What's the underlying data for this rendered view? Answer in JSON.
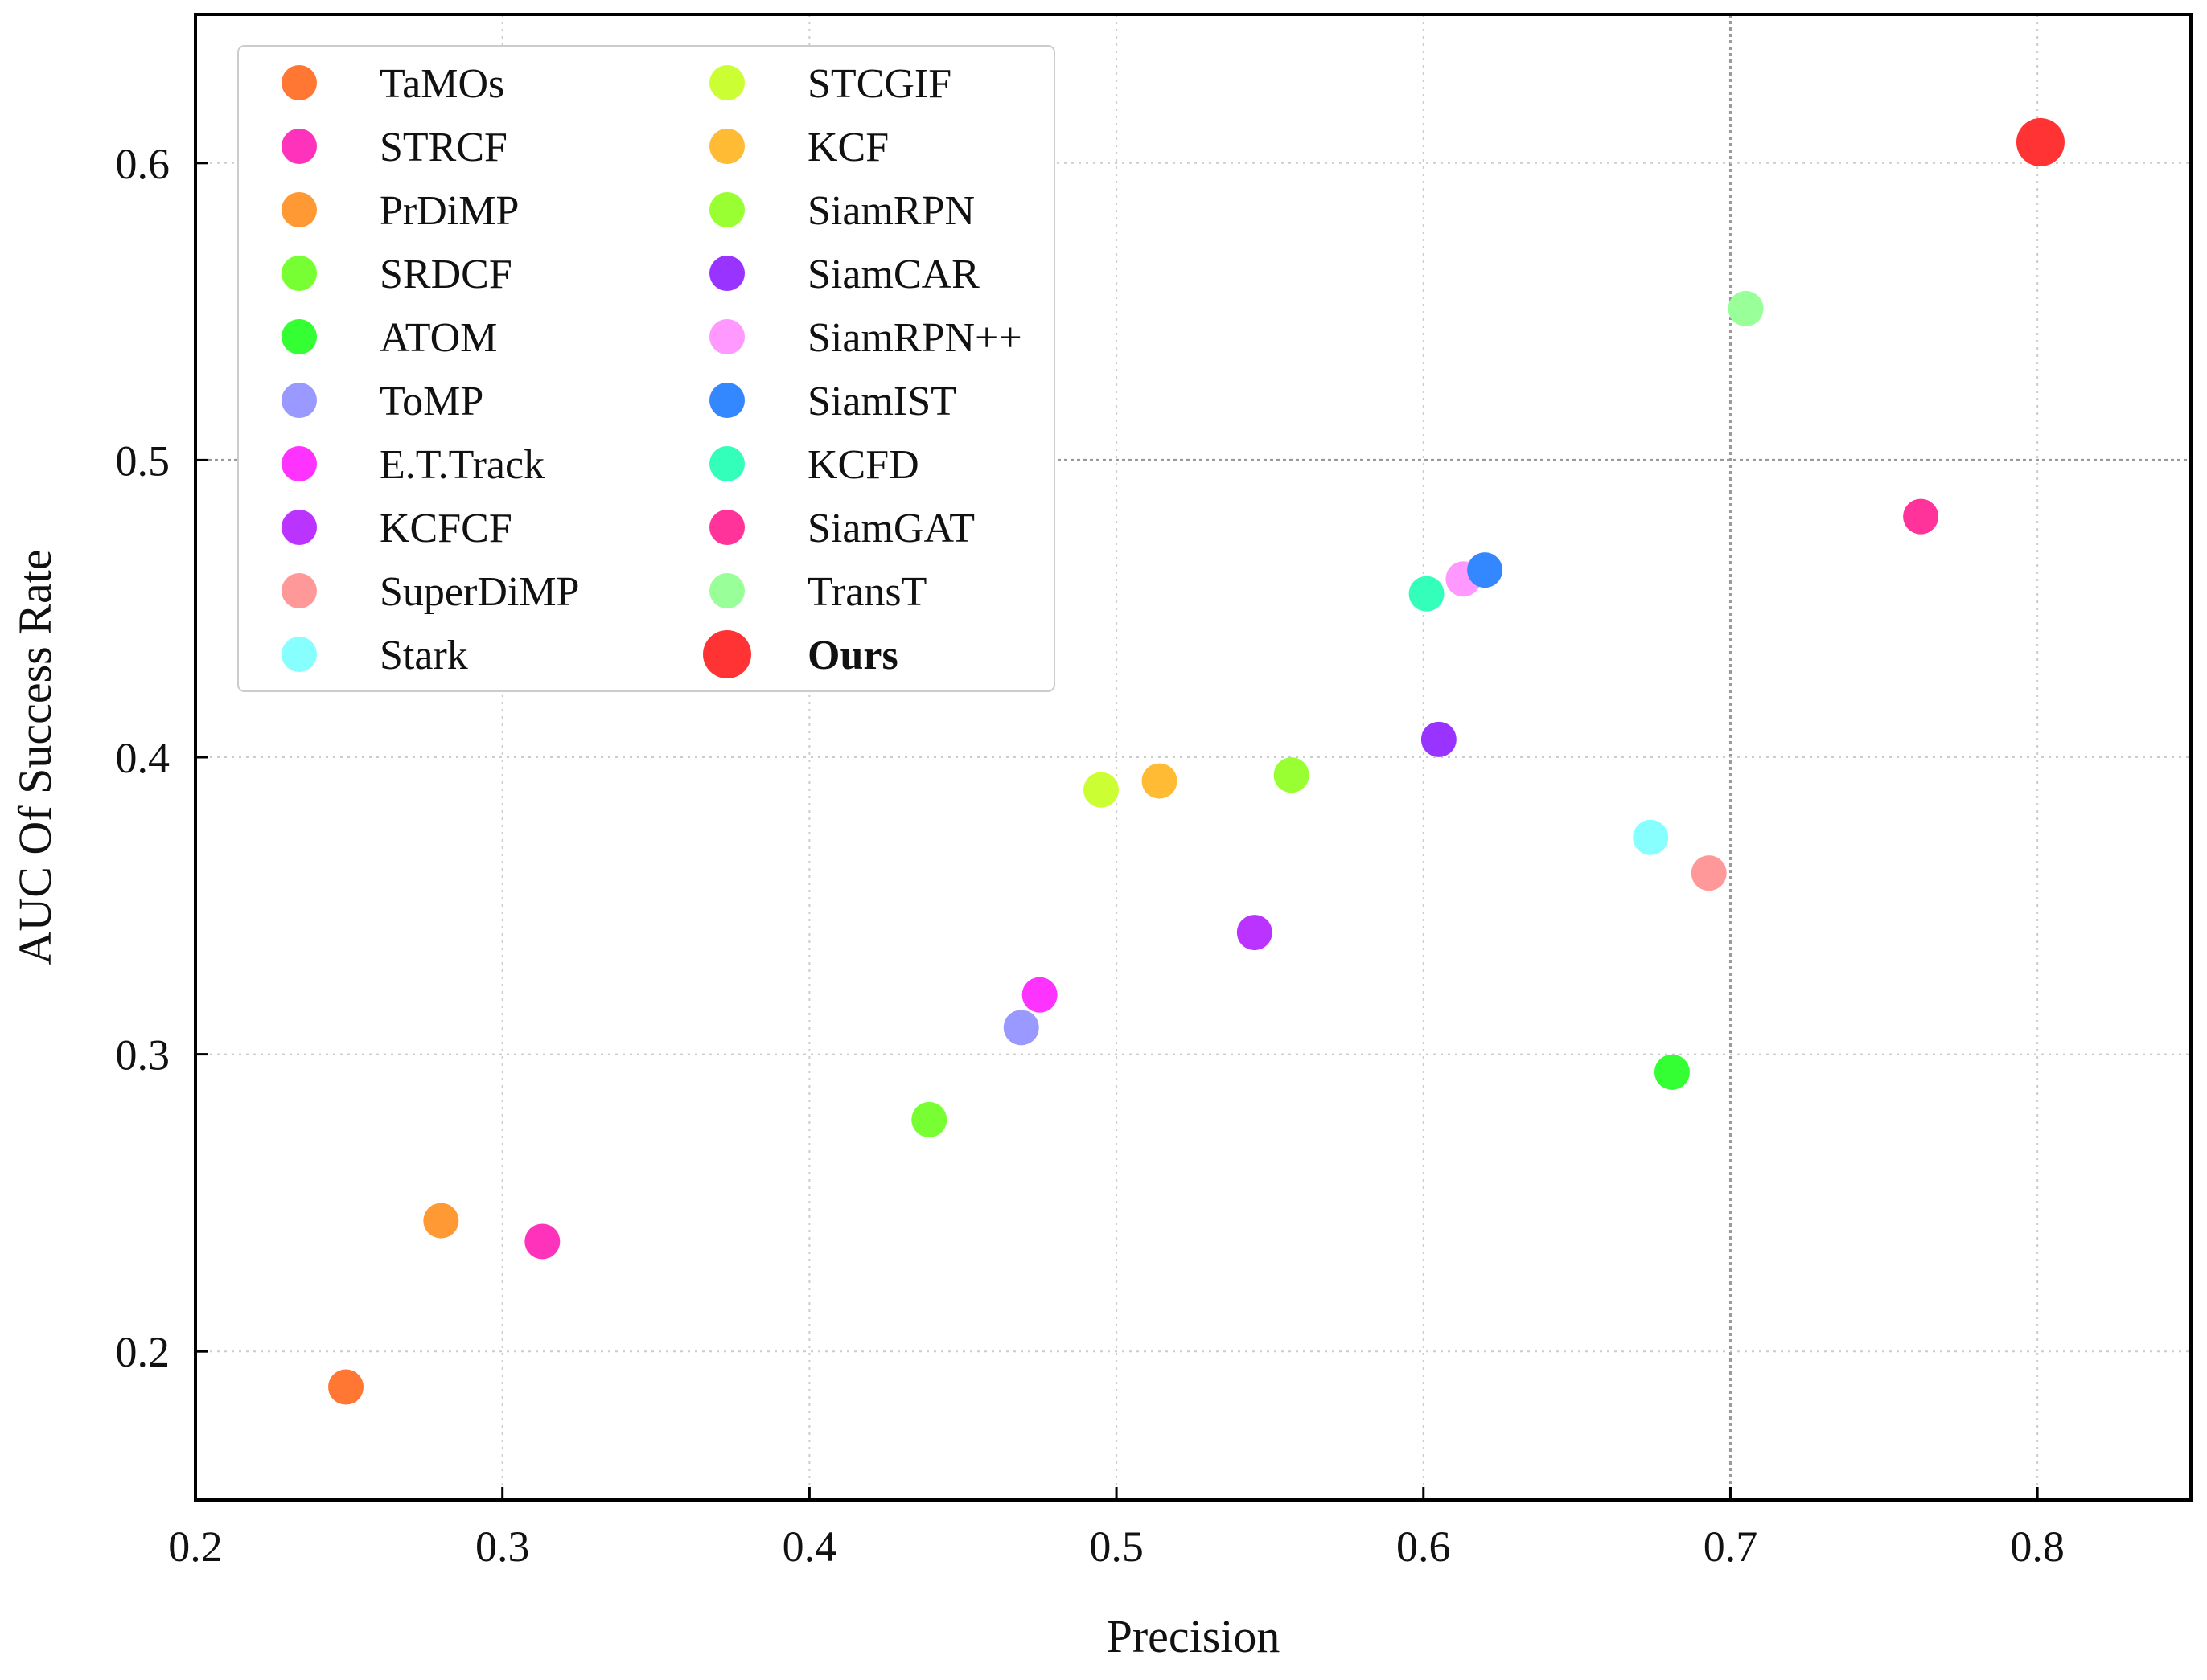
{
  "chart_data": {
    "type": "scatter",
    "xlabel": "Precision",
    "ylabel": "AUC Of Success Rate",
    "xlim": [
      0.2,
      0.85
    ],
    "ylim": [
      0.15,
      0.65
    ],
    "xticks": [
      0.2,
      0.3,
      0.4,
      0.5,
      0.6,
      0.7,
      0.8
    ],
    "yticks": [
      0.2,
      0.3,
      0.4,
      0.5,
      0.6
    ],
    "xtick_labels": [
      "0.2",
      "0.3",
      "0.4",
      "0.5",
      "0.6",
      "0.7",
      "0.8"
    ],
    "ytick_labels": [
      "0.2",
      "0.3",
      "0.4",
      "0.5",
      "0.6"
    ],
    "grid": true,
    "emphasized_gridlines": {
      "x": 0.7,
      "y": 0.5
    },
    "legend_placement": "top-left",
    "legend_columns": 2,
    "series": [
      {
        "name": "TaMOs",
        "color": "#ff7733",
        "x": 0.249,
        "y": 0.188
      },
      {
        "name": "STRCF",
        "color": "#ff33bb",
        "x": 0.313,
        "y": 0.237
      },
      {
        "name": "PrDiMP",
        "color": "#ff9933",
        "x": 0.28,
        "y": 0.244
      },
      {
        "name": "SRDCF",
        "color": "#77ff33",
        "x": 0.439,
        "y": 0.278
      },
      {
        "name": "ATOM",
        "color": "#33ff33",
        "x": 0.681,
        "y": 0.294
      },
      {
        "name": "ToMP",
        "color": "#9999ff",
        "x": 0.469,
        "y": 0.309
      },
      {
        "name": "E.T.Track",
        "color": "#ff33ff",
        "x": 0.475,
        "y": 0.32
      },
      {
        "name": "KCFCF",
        "color": "#bb33ff",
        "x": 0.545,
        "y": 0.341
      },
      {
        "name": "SuperDiMP",
        "color": "#ff9999",
        "x": 0.693,
        "y": 0.361
      },
      {
        "name": "Stark",
        "color": "#88ffff",
        "x": 0.674,
        "y": 0.373
      },
      {
        "name": "STCGIF",
        "color": "#ccff33",
        "x": 0.495,
        "y": 0.389
      },
      {
        "name": "KCF",
        "color": "#ffbb33",
        "x": 0.514,
        "y": 0.392
      },
      {
        "name": "SiamRPN",
        "color": "#99ff33",
        "x": 0.557,
        "y": 0.394
      },
      {
        "name": "SiamCAR",
        "color": "#9933ff",
        "x": 0.605,
        "y": 0.406
      },
      {
        "name": "SiamRPN++",
        "color": "#ff99ff",
        "x": 0.613,
        "y": 0.46
      },
      {
        "name": "SiamIST",
        "color": "#3388ff",
        "x": 0.62,
        "y": 0.463
      },
      {
        "name": "KCFD",
        "color": "#33ffbb",
        "x": 0.601,
        "y": 0.455
      },
      {
        "name": "SiamGAT",
        "color": "#ff3399",
        "x": 0.762,
        "y": 0.481
      },
      {
        "name": "TransT",
        "color": "#99ff99",
        "x": 0.705,
        "y": 0.551
      },
      {
        "name": "Ours",
        "color": "#ff3333",
        "x": 0.801,
        "y": 0.607,
        "emphasized": true
      }
    ]
  }
}
